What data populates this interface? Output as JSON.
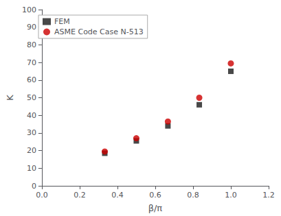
{
  "chart_data": {
    "type": "scatter",
    "xlabel": "β/π",
    "ylabel": "K",
    "series": [
      {
        "name": "FEM",
        "color": "#1a1a1a",
        "marker": "square",
        "x": [
          0.333,
          0.5,
          0.667,
          0.833,
          1.0
        ],
        "values": [
          18.5,
          25.5,
          34.0,
          46.0,
          65.0
        ]
      },
      {
        "name": "ASME Code Case N-513",
        "color": "#cc0000",
        "marker": "circle",
        "x": [
          0.333,
          0.5,
          0.667,
          0.833,
          1.0
        ],
        "values": [
          19.5,
          27.0,
          36.5,
          50.0,
          69.5
        ]
      }
    ],
    "xlim": [
      0.0,
      1.2
    ],
    "ylim": [
      0,
      100
    ],
    "xticks": [
      {
        "value": 0,
        "label": "0.0"
      },
      0.2,
      0.4,
      0.6,
      0.8,
      {
        "value": 1,
        "label": "1.0"
      },
      1.2
    ],
    "yticks": [
      0,
      10,
      20,
      30,
      40,
      50,
      60,
      70,
      80,
      90,
      100
    ],
    "legend": "upper left",
    "grid": false
  }
}
